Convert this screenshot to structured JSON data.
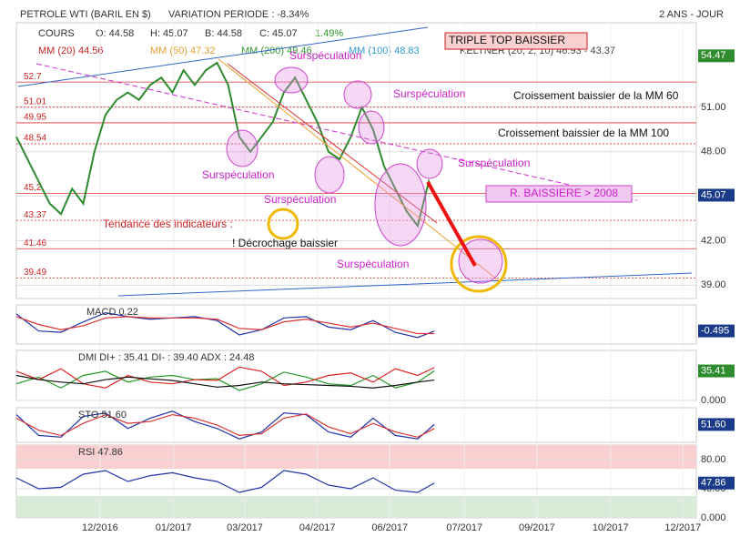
{
  "header": {
    "instrument": "PETROLE WTI (BARIL EN $)",
    "variation": "VARIATION PERIODE : -8.34%",
    "period": "2 ANS - JOUR"
  },
  "legend": {
    "cours": "COURS",
    "open": "O: 44.58",
    "high": "H: 45.07",
    "low": "B: 44.58",
    "close": "C: 45.07",
    "change": "1.49%",
    "mm20": "MM (20) 44.56",
    "mm50": "MM (50) 47.32",
    "mm200": "MM (200) 49.46",
    "mm100": "MM (100) 48.83",
    "keltner": "KELTNER (20, 2, 10) 46.93 - 43.37"
  },
  "annotations": [
    "TRIPLE TOP BAISSIER",
    "Surspéculation",
    "Surspéculation",
    "Surspéculation",
    "Surspéculation",
    "Surspéculation",
    "Surspéculation",
    "Croissement baissier de la MM 60",
    "Croissement baissier de la MM 100",
    "R. BAISSIERE > 2008",
    "Tendance des indicateurs :",
    "! Décrochage baissier"
  ],
  "chart_data": [
    {
      "type": "line",
      "name": "main",
      "x": [
        0,
        1,
        2,
        3,
        4,
        5,
        6,
        7,
        8,
        9,
        10,
        11,
        12,
        13,
        14,
        15,
        16,
        17,
        18,
        19,
        20,
        21,
        22,
        23,
        24,
        25,
        26,
        27,
        28,
        29,
        30,
        31,
        32,
        33,
        34,
        35,
        36,
        37,
        37.5
      ],
      "series": [
        {
          "name": "COURS",
          "color": "#2e8b2e",
          "values": [
            49,
            47.5,
            46,
            44.5,
            43.8,
            45.5,
            44.5,
            48,
            50.5,
            51.5,
            52,
            51.5,
            52.5,
            53,
            52,
            53.5,
            52.5,
            53.5,
            54,
            52.5,
            49,
            48,
            49,
            50,
            52,
            53,
            51.5,
            50,
            48,
            47.5,
            49,
            51,
            49.5,
            47,
            45.5,
            44,
            43,
            46,
            45.07
          ]
        }
      ],
      "xlim": [
        0,
        61
      ],
      "xticks": [
        {
          "value": 7.5,
          "label": "12/2016"
        },
        {
          "value": 14.1,
          "label": "01/2017"
        },
        {
          "value": 20.5,
          "label": "03/2017"
        },
        {
          "value": 27,
          "label": "04/2017"
        },
        {
          "value": 33.5,
          "label": "06/2017"
        },
        {
          "value": 40.2,
          "label": "07/2017"
        },
        {
          "value": 46.7,
          "label": "09/2017"
        },
        {
          "value": 53.3,
          "label": "10/2017"
        },
        {
          "value": 59.8,
          "label": "12/2017"
        }
      ],
      "ylim": [
        38.1,
        56.7
      ],
      "yticks": [
        {
          "value": 39,
          "label": "39.00"
        },
        {
          "value": 42,
          "label": "42.00"
        },
        {
          "value": 45,
          "label": "45.00"
        },
        {
          "value": 48,
          "label": "48.00"
        },
        {
          "value": 51,
          "label": "51.00"
        }
      ],
      "levels": [
        {
          "value": 52.7,
          "label": "52.7"
        },
        51.01,
        49.95,
        48.54,
        {
          "value": 45.2,
          "label": "45.2"
        },
        43.37,
        41.46,
        39.49
      ],
      "marker": 54.47,
      "current": 45.07
    },
    {
      "type": "line",
      "name": "macd",
      "label": "MACD 0.22",
      "x": [
        0,
        2,
        4,
        6,
        8,
        10,
        12,
        14,
        16,
        18,
        20,
        22,
        24,
        26,
        28,
        30,
        32,
        34,
        36,
        37.5
      ],
      "series": [
        {
          "name": "MACD",
          "color": "#2233aa",
          "values": [
            0.8,
            -0.5,
            -0.6,
            0.2,
            0.9,
            0.6,
            0.4,
            0.5,
            0.6,
            0.3,
            -0.8,
            -0.4,
            0.5,
            0.6,
            -0.2,
            -0.4,
            0.3,
            -0.6,
            -1.0,
            -0.5
          ]
        },
        {
          "name": "SIGNAL",
          "color": "#dd3333",
          "values": [
            0.6,
            0,
            -0.4,
            -0.1,
            0.5,
            0.6,
            0.5,
            0.5,
            0.5,
            0.4,
            -0.3,
            -0.4,
            0.2,
            0.4,
            0.1,
            -0.2,
            0.1,
            -0.3,
            -0.7,
            -0.7
          ]
        }
      ],
      "ylim": [
        -1.5,
        1.5
      ],
      "current": -0.495
    },
    {
      "type": "line",
      "name": "dmi",
      "label": "DMI DI+ : 35.41 DI- : 39.40 ADX : 24.48",
      "x": [
        0,
        2,
        4,
        6,
        8,
        10,
        12,
        14,
        16,
        18,
        20,
        22,
        24,
        26,
        28,
        30,
        32,
        34,
        36,
        37.5
      ],
      "series": [
        {
          "name": "DI+",
          "color": "#229922",
          "values": [
            20,
            28,
            15,
            30,
            35,
            22,
            28,
            30,
            25,
            26,
            12,
            20,
            34,
            28,
            20,
            18,
            30,
            15,
            22,
            35.41
          ]
        },
        {
          "name": "DI-",
          "color": "#dd2222",
          "values": [
            35,
            25,
            38,
            20,
            15,
            30,
            22,
            20,
            25,
            24,
            40,
            35,
            18,
            22,
            30,
            33,
            22,
            38,
            30,
            39.4
          ]
        },
        {
          "name": "ADX",
          "color": "#111111",
          "values": [
            30,
            25,
            22,
            20,
            25,
            28,
            26,
            24,
            20,
            16,
            18,
            22,
            20,
            19,
            18,
            17,
            15,
            18,
            22,
            24.48
          ]
        }
      ],
      "ylim": [
        0,
        60
      ],
      "yticks": [
        {
          "value": 0,
          "label": "0.000"
        }
      ],
      "current": 35.41
    },
    {
      "type": "line",
      "name": "sto",
      "label": "STO 51.60",
      "x": [
        0,
        2,
        4,
        6,
        8,
        10,
        12,
        14,
        16,
        18,
        20,
        22,
        24,
        26,
        28,
        30,
        32,
        34,
        36,
        37.5
      ],
      "series": [
        {
          "name": "%K",
          "color": "#2233aa",
          "values": [
            80,
            20,
            15,
            75,
            85,
            40,
            70,
            90,
            60,
            40,
            10,
            30,
            85,
            80,
            30,
            15,
            70,
            20,
            10,
            51.6
          ]
        },
        {
          "name": "%D",
          "color": "#dd3333",
          "values": [
            70,
            35,
            20,
            55,
            80,
            55,
            60,
            80,
            70,
            50,
            20,
            25,
            70,
            82,
            45,
            25,
            55,
            30,
            15,
            40
          ]
        }
      ],
      "ylim": [
        0,
        100
      ],
      "current": {
        "value": 51.6,
        "label": "51.60"
      }
    },
    {
      "type": "line",
      "name": "rsi",
      "label": "RSI 47.86",
      "x": [
        0,
        2,
        4,
        6,
        8,
        10,
        12,
        14,
        16,
        18,
        20,
        22,
        24,
        26,
        28,
        30,
        32,
        34,
        36,
        37.5
      ],
      "series": [
        {
          "name": "RSI",
          "color": "#2233aa",
          "values": [
            55,
            40,
            42,
            60,
            65,
            50,
            58,
            62,
            55,
            50,
            35,
            42,
            65,
            60,
            45,
            40,
            55,
            38,
            35,
            47.86
          ]
        }
      ],
      "ylim": [
        0,
        100
      ],
      "yticks": [
        {
          "value": 0,
          "label": "0.000"
        },
        {
          "value": 40,
          "label": "40.00"
        },
        {
          "value": 80,
          "label": "80.00"
        }
      ],
      "current": 47.86
    }
  ]
}
